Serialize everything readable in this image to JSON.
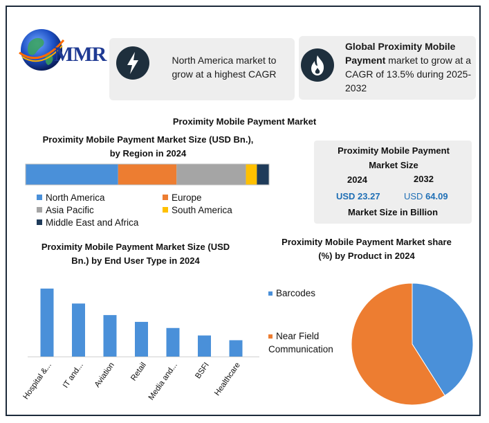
{
  "brand": {
    "logo_text": "MMR"
  },
  "highlights": {
    "left_text": "North America market to grow at a highest CAGR",
    "right_bold": "Global Proximity Mobile Payment",
    "right_text": " market to grow at a CAGR of 13.5% during 2025-2032",
    "left_icon": "lightning-icon",
    "right_icon": "flame-icon"
  },
  "main_title": "Proximity Mobile Payment Market",
  "market_size": {
    "title": "Proximity Mobile Payment Market Size",
    "year1": "2024",
    "year2": "2032",
    "value1": "USD 23.27",
    "value2_prefix": "USD ",
    "value2": "64.09",
    "caption": "Market Size in Billion"
  },
  "colors": {
    "blue": "#4a90d9",
    "orange": "#ed7d31",
    "gray": "#a5a5a5",
    "yellow": "#ffc000",
    "navy": "#1f3b5a",
    "value_blue": "#1f6fb5"
  },
  "chart_data": [
    {
      "type": "bar",
      "orientation": "horizontal-stacked",
      "title": "Proximity Mobile Payment Market Size (USD Bn.), by Region in 2024",
      "series": [
        {
          "name": "North America",
          "values": [
            38
          ],
          "color": "#4a90d9"
        },
        {
          "name": "Europe",
          "values": [
            24
          ],
          "color": "#ed7d31"
        },
        {
          "name": "Asia Pacific",
          "values": [
            28.5
          ],
          "color": "#a5a5a5"
        },
        {
          "name": "South America",
          "values": [
            4.5
          ],
          "color": "#ffc000"
        },
        {
          "name": "Middle East and Africa",
          "values": [
            5
          ],
          "color": "#1f3b5a"
        }
      ],
      "legend": "bottom",
      "grid": false
    },
    {
      "type": "bar",
      "title": "Proximity Mobile Payment Market Size (USD Bn.) by End User Type in 2024",
      "categories": [
        "Hospital &...",
        "IT and...",
        "Aviation",
        "Retail",
        "Media and...",
        "BSFI",
        "Healthcare"
      ],
      "values": [
        100,
        78,
        61,
        51,
        42,
        31,
        24
      ],
      "color": "#4a90d9",
      "ylim": [
        0,
        110
      ],
      "grid": false
    },
    {
      "type": "pie",
      "title": "Proximity Mobile Payment Market share (%) by Product in 2024",
      "labels": [
        "Barcodes",
        "Near Field Communication"
      ],
      "values": [
        41,
        59
      ],
      "colors": [
        "#4a90d9",
        "#ed7d31"
      ],
      "legend": "left"
    }
  ]
}
